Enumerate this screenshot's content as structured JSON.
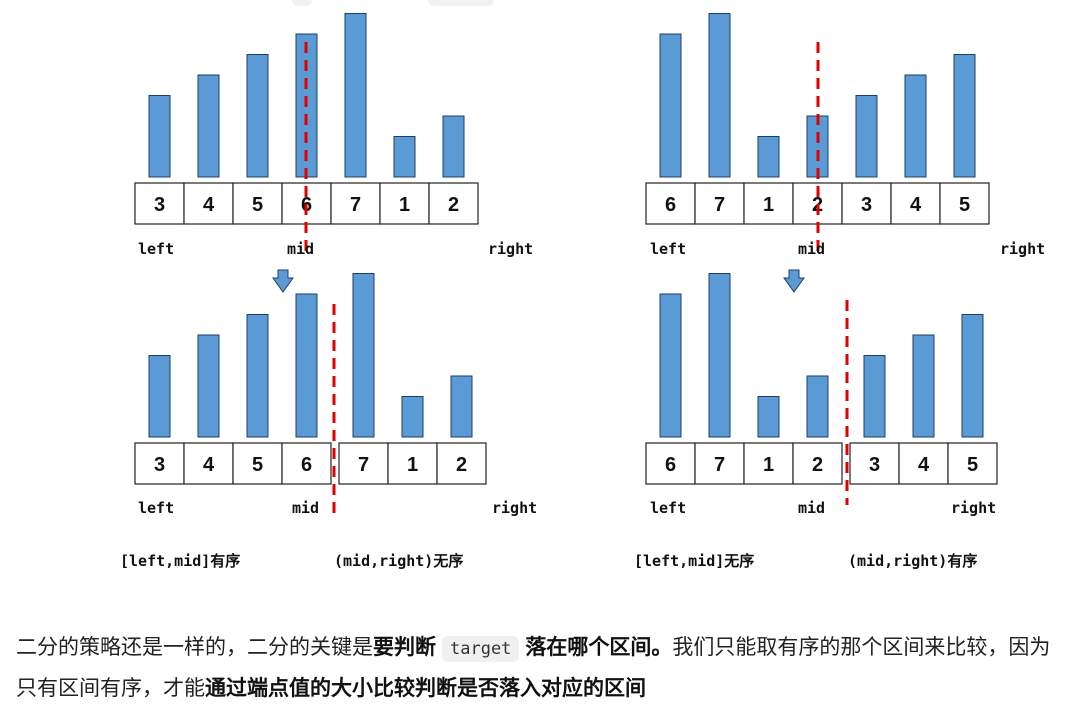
{
  "colors": {
    "bar": "#5b9bd5",
    "bar_stroke": "#1f3d66",
    "dash": "#e00000",
    "arrow": "#5b9bd5"
  },
  "diagrams": [
    {
      "id": "top-left",
      "values": [
        "3",
        "4",
        "5",
        "6",
        "7",
        "1",
        "2"
      ],
      "heights": [
        3,
        4,
        5,
        6,
        7,
        1,
        2
      ],
      "split": false,
      "labels": {
        "left": "left",
        "mid": "mid",
        "right": "right"
      }
    },
    {
      "id": "top-right",
      "values": [
        "6",
        "7",
        "1",
        "2",
        "3",
        "4",
        "5"
      ],
      "heights": [
        6,
        7,
        1,
        2,
        3,
        4,
        5
      ],
      "split": false,
      "labels": {
        "left": "left",
        "mid": "mid",
        "right": "right"
      }
    },
    {
      "id": "bottom-left",
      "values": [
        "3",
        "4",
        "5",
        "6",
        "7",
        "1",
        "2"
      ],
      "heights": [
        3,
        4,
        5,
        6,
        7,
        1,
        2
      ],
      "split": true,
      "labels": {
        "left": "left",
        "mid": "mid",
        "right": "right"
      },
      "captions": {
        "first": "[left,mid]有序",
        "second": "(mid,right)无序"
      }
    },
    {
      "id": "bottom-right",
      "values": [
        "6",
        "7",
        "1",
        "2",
        "3",
        "4",
        "5"
      ],
      "heights": [
        6,
        7,
        1,
        2,
        3,
        4,
        5
      ],
      "split": true,
      "labels": {
        "left": "left",
        "mid": "mid",
        "right": "right"
      },
      "captions": {
        "first": "[left,mid]无序",
        "second": "(mid,right)有序"
      }
    }
  ],
  "paragraph": {
    "t1": "二分的策略还是一样的，二分的关键是",
    "b1": "要判断",
    "code": "target",
    "b2": "落在哪个区间。",
    "t2": "我们只能取有序的那个区间来比较，因为只有区间有序，才能",
    "b3": "通过端点值的大小比较判断是否落入对应的区间"
  }
}
